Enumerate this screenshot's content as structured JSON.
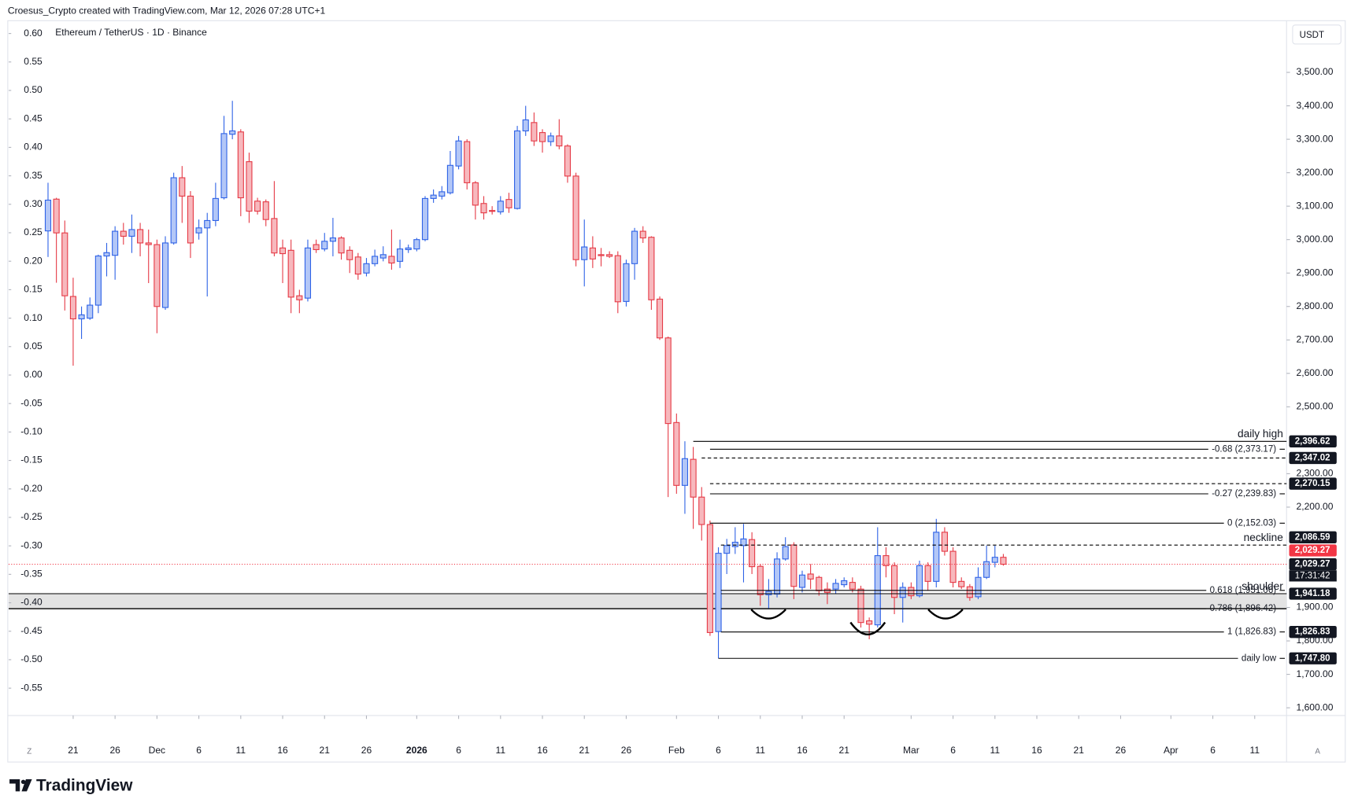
{
  "chart_data": {
    "type": "candlestick",
    "attribution": "Croesus_Crypto created with TradingView.com, Mar 12, 2026 07:28 UTC+1",
    "title": "Ethereum / TetherUS · 1D · Binance",
    "currency": "USDT",
    "logo": "TradingView",
    "corner_left": "Z",
    "corner_right": "A",
    "up_color": "#2e62e6",
    "up_fill": "#b3c7f7",
    "down_color": "#e53945",
    "down_fill": "#f7b8bd",
    "x": [
      "Nov 18",
      "Nov 19",
      "Nov 20",
      "Nov 21",
      "Nov 22",
      "Nov 23",
      "Nov 24",
      "Nov 25",
      "Nov 26",
      "Nov 27",
      "Nov 28",
      "Nov 29",
      "Nov 30",
      "Dec 1",
      "Dec 2",
      "Dec 3",
      "Dec 4",
      "Dec 5",
      "Dec 6",
      "Dec 7",
      "Dec 8",
      "Dec 9",
      "Dec 10",
      "Dec 11",
      "Dec 12",
      "Dec 13",
      "Dec 14",
      "Dec 15",
      "Dec 16",
      "Dec 17",
      "Dec 18",
      "Dec 19",
      "Dec 20",
      "Dec 21",
      "Dec 22",
      "Dec 23",
      "Dec 24",
      "Dec 25",
      "Dec 26",
      "Dec 27",
      "Dec 28",
      "Dec 29",
      "Dec 30",
      "Dec 31",
      "Jan 1",
      "Jan 2",
      "Jan 3",
      "Jan 4",
      "Jan 5",
      "Jan 6",
      "Jan 7",
      "Jan 8",
      "Jan 9",
      "Jan 10",
      "Jan 11",
      "Jan 12",
      "Jan 13",
      "Jan 14",
      "Jan 15",
      "Jan 16",
      "Jan 17",
      "Jan 18",
      "Jan 19",
      "Jan 20",
      "Jan 21",
      "Jan 22",
      "Jan 23",
      "Jan 24",
      "Jan 25",
      "Jan 26",
      "Jan 27",
      "Jan 28",
      "Jan 29",
      "Jan 30",
      "Jan 31",
      "Feb 1",
      "Feb 2",
      "Feb 3",
      "Feb 4",
      "Feb 5",
      "Feb 6",
      "Feb 7",
      "Feb 8",
      "Feb 9",
      "Feb 10",
      "Feb 11",
      "Feb 12",
      "Feb 13",
      "Feb 14",
      "Feb 15",
      "Feb 16",
      "Feb 17",
      "Feb 18",
      "Feb 19",
      "Feb 20",
      "Feb 21",
      "Feb 22",
      "Feb 23",
      "Feb 24",
      "Feb 25",
      "Feb 26",
      "Feb 27",
      "Feb 28",
      "Mar 1",
      "Mar 2",
      "Mar 3",
      "Mar 4",
      "Mar 5",
      "Mar 6",
      "Mar 7",
      "Mar 8",
      "Mar 9",
      "Mar 10",
      "Mar 11",
      "Mar 12"
    ],
    "open": [
      3026,
      3121,
      3020,
      2830,
      2763,
      2765,
      2804,
      2951,
      2953,
      3025,
      3010,
      3030,
      2990,
      2985,
      2797,
      2990,
      3185,
      3130,
      3020,
      3035,
      3057,
      3125,
      3315,
      3322,
      3233,
      3115,
      3113,
      3063,
      2975,
      2968,
      2832,
      2825,
      2985,
      2972,
      2995,
      3005,
      2968,
      2948,
      2900,
      2928,
      2945,
      2950,
      2935,
      2970,
      2972,
      3000,
      3123,
      3130,
      3140,
      3220,
      3293,
      3170,
      3108,
      3087,
      3083,
      3120,
      3093,
      3325,
      3350,
      3320,
      3293,
      3310,
      3280,
      3190,
      2940,
      2975,
      2955,
      2955,
      2952,
      2815,
      2928,
      3025,
      3007,
      2822,
      2706,
      2453,
      2265,
      2343,
      2230,
      2148,
      1828,
      2062,
      2082,
      2085,
      2103,
      2023,
      1938,
      1940,
      2045,
      2087,
      1960,
      2000,
      1990,
      1955,
      1955,
      1968,
      1975,
      1955,
      1860,
      1848,
      2055,
      2025,
      1930,
      1960,
      1935,
      2025,
      1978,
      2125,
      2068,
      1978,
      1962,
      1932,
      1990,
      2035,
      2050
    ],
    "high": [
      3170,
      3125,
      3057,
      2886,
      2800,
      2827,
      2955,
      2990,
      3040,
      3050,
      3075,
      3050,
      3030,
      3000,
      3010,
      3200,
      3220,
      3145,
      3060,
      3080,
      3170,
      3370,
      3415,
      3330,
      3260,
      3125,
      3120,
      3175,
      3000,
      3000,
      2850,
      3000,
      3000,
      3020,
      3065,
      3010,
      2980,
      2960,
      2945,
      2970,
      2980,
      3030,
      3000,
      2985,
      3005,
      3130,
      3150,
      3160,
      3265,
      3310,
      3300,
      3175,
      3130,
      3100,
      3130,
      3140,
      3340,
      3400,
      3380,
      3330,
      3320,
      3360,
      3285,
      3200,
      3060,
      3010,
      2975,
      2965,
      2965,
      2940,
      3035,
      3040,
      3010,
      2830,
      2710,
      2480,
      2397,
      2380,
      2260,
      2160,
      2080,
      2105,
      2140,
      2150,
      2125,
      2030,
      1985,
      2065,
      2110,
      2095,
      2010,
      2030,
      1995,
      1975,
      1985,
      1990,
      1990,
      1965,
      1870,
      2140,
      2080,
      2035,
      1975,
      1975,
      2040,
      2035,
      2165,
      2140,
      2080,
      1990,
      1970,
      2020,
      2085,
      2085,
      2060
    ],
    "low": [
      2948,
      2871,
      2788,
      2623,
      2703,
      2760,
      2780,
      2890,
      2880,
      2985,
      2960,
      2950,
      2870,
      2720,
      2790,
      2985,
      3050,
      2945,
      3000,
      2830,
      3040,
      3120,
      3300,
      3070,
      3050,
      3075,
      3040,
      2950,
      2870,
      2780,
      2780,
      2815,
      2960,
      2965,
      2950,
      2940,
      2900,
      2880,
      2890,
      2920,
      2935,
      2910,
      2915,
      2960,
      2965,
      2995,
      3110,
      3120,
      3135,
      3210,
      3150,
      3060,
      3060,
      3075,
      3075,
      3080,
      3090,
      3310,
      3280,
      3260,
      3280,
      3270,
      3170,
      2920,
      2860,
      2915,
      2920,
      2945,
      2780,
      2800,
      2880,
      2990,
      2790,
      2700,
      2230,
      2240,
      2180,
      2135,
      2100,
      1815,
      1748,
      2000,
      2060,
      1975,
      2000,
      1905,
      1895,
      1930,
      2040,
      1925,
      1945,
      1955,
      1935,
      1910,
      1940,
      1960,
      1945,
      1840,
      1805,
      1840,
      1990,
      1880,
      1855,
      1925,
      1930,
      1950,
      1960,
      2055,
      1960,
      1955,
      1920,
      1925,
      1985,
      2020,
      2025
    ],
    "close": [
      3118,
      3020,
      2832,
      2763,
      2775,
      2804,
      2951,
      2961,
      3025,
      3010,
      3030,
      2990,
      2985,
      2800,
      2990,
      3185,
      3130,
      2990,
      3035,
      3057,
      3123,
      3317,
      3325,
      3125,
      3085,
      3085,
      3060,
      2960,
      2958,
      2828,
      2820,
      2975,
      2970,
      2995,
      3005,
      2960,
      2940,
      2897,
      2928,
      2950,
      2955,
      2930,
      2972,
      2975,
      3000,
      3123,
      3133,
      3143,
      3222,
      3295,
      3170,
      3103,
      3080,
      3085,
      3115,
      3095,
      3325,
      3358,
      3295,
      3293,
      3310,
      3280,
      3190,
      2940,
      2978,
      2942,
      2952,
      2950,
      2814,
      2928,
      3025,
      3005,
      2820,
      2706,
      2450,
      2265,
      2345,
      2230,
      2148,
      1825,
      2062,
      2085,
      2095,
      2105,
      2022,
      1938,
      1948,
      2045,
      2082,
      1963,
      1997,
      1985,
      1950,
      1945,
      1972,
      1980,
      1955,
      1855,
      1850,
      2055,
      2025,
      1930,
      1960,
      1935,
      2025,
      1978,
      2125,
      2068,
      1975,
      1962,
      1930,
      1990,
      2037,
      2050,
      2029.27
    ],
    "xlim": [
      -4.7,
      147.8
    ],
    "xticks": [
      {
        "value": 3,
        "label": "21"
      },
      {
        "value": 8,
        "label": "26"
      },
      {
        "value": 13,
        "label": "Dec"
      },
      {
        "value": 18,
        "label": "6"
      },
      {
        "value": 23,
        "label": "11"
      },
      {
        "value": 28,
        "label": "16"
      },
      {
        "value": 33,
        "label": "21"
      },
      {
        "value": 38,
        "label": "26"
      },
      {
        "value": 44,
        "label": "2026",
        "bold": true
      },
      {
        "value": 49,
        "label": "6"
      },
      {
        "value": 54,
        "label": "11"
      },
      {
        "value": 59,
        "label": "16"
      },
      {
        "value": 64,
        "label": "21"
      },
      {
        "value": 69,
        "label": "26"
      },
      {
        "value": 75,
        "label": "Feb"
      },
      {
        "value": 80,
        "label": "6"
      },
      {
        "value": 85,
        "label": "11"
      },
      {
        "value": 90,
        "label": "16"
      },
      {
        "value": 95,
        "label": "21"
      },
      {
        "value": 103,
        "label": "Mar"
      },
      {
        "value": 108,
        "label": "6"
      },
      {
        "value": 113,
        "label": "11"
      },
      {
        "value": 118,
        "label": "16"
      },
      {
        "value": 123,
        "label": "21"
      },
      {
        "value": 128,
        "label": "26"
      },
      {
        "value": 134,
        "label": "Apr"
      },
      {
        "value": 139,
        "label": "6"
      },
      {
        "value": 144,
        "label": "11"
      }
    ],
    "ylim": [
      1577,
      3652
    ],
    "yticks": [
      {
        "value": 1600,
        "label": "1,600.00"
      },
      {
        "value": 1700,
        "label": "1,700.00"
      },
      {
        "value": 1800,
        "label": "1,800.00"
      },
      {
        "value": 1900,
        "label": "1,900.00"
      },
      {
        "value": 2200,
        "label": "2,200.00"
      },
      {
        "value": 2300,
        "label": "2,300.00"
      },
      {
        "value": 2500,
        "label": "2,500.00"
      },
      {
        "value": 2600,
        "label": "2,600.00"
      },
      {
        "value": 2700,
        "label": "2,700.00"
      },
      {
        "value": 2800,
        "label": "2,800.00"
      },
      {
        "value": 2900,
        "label": "2,900.00"
      },
      {
        "value": 3000,
        "label": "3,000.00"
      },
      {
        "value": 3100,
        "label": "3,100.00"
      },
      {
        "value": 3200,
        "label": "3,200.00"
      },
      {
        "value": 3300,
        "label": "3,300.00"
      },
      {
        "value": 3400,
        "label": "3,400.00"
      },
      {
        "value": 3500,
        "label": "3,500.00"
      }
    ],
    "y2lim": [
      -0.598,
      0.621
    ],
    "y2ticks": [
      {
        "value": 0.6,
        "label": "0.60"
      },
      {
        "value": 0.55,
        "label": "0.55"
      },
      {
        "value": 0.5,
        "label": "0.50"
      },
      {
        "value": 0.45,
        "label": "0.45"
      },
      {
        "value": 0.4,
        "label": "0.40"
      },
      {
        "value": 0.35,
        "label": "0.35"
      },
      {
        "value": 0.3,
        "label": "0.30"
      },
      {
        "value": 0.25,
        "label": "0.25"
      },
      {
        "value": 0.2,
        "label": "0.20"
      },
      {
        "value": 0.15,
        "label": "0.15"
      },
      {
        "value": 0.1,
        "label": "0.10"
      },
      {
        "value": 0.05,
        "label": "0.05"
      },
      {
        "value": 0,
        "label": "0.00"
      },
      {
        "value": -0.05,
        "label": "-0.05"
      },
      {
        "value": -0.1,
        "label": "-0.10"
      },
      {
        "value": -0.15,
        "label": "-0.15"
      },
      {
        "value": -0.2,
        "label": "-0.20"
      },
      {
        "value": -0.25,
        "label": "-0.25"
      },
      {
        "value": -0.3,
        "label": "-0.30"
      },
      {
        "value": -0.35,
        "label": "-0.35"
      },
      {
        "value": -0.4,
        "label": "-0.40"
      },
      {
        "value": -0.45,
        "label": "-0.45"
      },
      {
        "value": -0.5,
        "label": "-0.50"
      },
      {
        "value": -0.55,
        "label": "-0.55"
      }
    ],
    "zone": {
      "low": 1896.42,
      "high": 1941.18
    },
    "levels": [
      {
        "value": 2396.62,
        "label": "daily high",
        "style": "solid",
        "label_position": "above"
      },
      {
        "value": 2373.17,
        "label": "-0.68 (2,373.17)",
        "style": "solid",
        "label_position": "inline"
      },
      {
        "value": 2347.02,
        "style": "dashed"
      },
      {
        "value": 2270.15,
        "style": "dashed"
      },
      {
        "value": 2239.83,
        "label": "-0.27 (2,239.83)",
        "style": "solid",
        "label_position": "inline"
      },
      {
        "value": 2152.03,
        "label": "0 (2,152.03)",
        "style": "solid",
        "label_position": "inline"
      },
      {
        "value": 2086.59,
        "label": "neckline",
        "style": "dashed",
        "label_position": "above"
      },
      {
        "value": 1941.18,
        "label": "shoulder",
        "style": "solid",
        "label_position": "above"
      },
      {
        "value": 1951.06,
        "label": "0.618 (1,951.06)",
        "style": "solid",
        "label_position": "inline"
      },
      {
        "value": 1896.42,
        "label": "0.786 (1,896.42)",
        "style": "solid",
        "label_position": "inline"
      },
      {
        "value": 1826.83,
        "label": "1 (1,826.83)",
        "style": "solid",
        "label_position": "inline"
      },
      {
        "value": 1747.8,
        "label": "daily low",
        "style": "solid",
        "label_position": "inline"
      }
    ],
    "price_labels": [
      {
        "value": 2396.62,
        "label": "2,396.62"
      },
      {
        "value": 2347.02,
        "label": "2,347.02"
      },
      {
        "value": 2270.15,
        "label": "2,270.15"
      },
      {
        "value": 2086.59,
        "label": "2,086.59"
      },
      {
        "value": 2029.27,
        "label": "2,029.27",
        "countdown": "17:31:42"
      },
      {
        "value": 1941.18,
        "label": "1,941.18"
      },
      {
        "value": 1826.83,
        "label": "1,826.83"
      },
      {
        "value": 1747.8,
        "label": "1,747.80"
      }
    ],
    "last_price": {
      "value": 2029.27,
      "label": "2,029.27",
      "color": "#f23645"
    }
  }
}
